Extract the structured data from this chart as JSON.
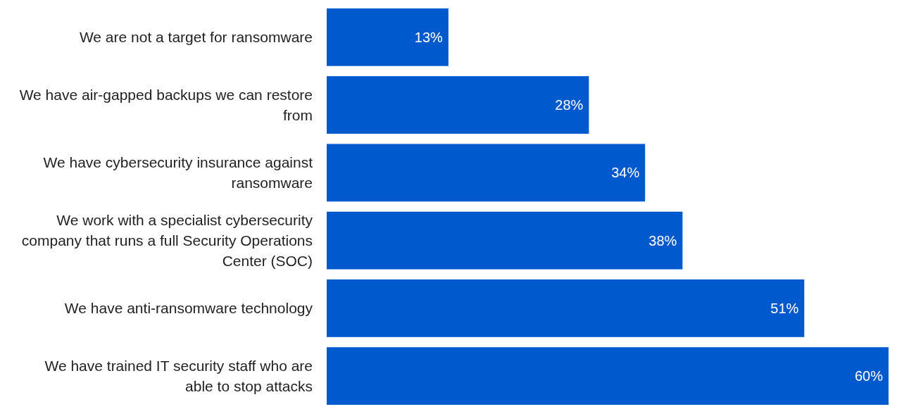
{
  "chart_data": {
    "type": "bar",
    "orientation": "horizontal",
    "categories": [
      "We are not a target for ransomware",
      "We have air-gapped backups we can restore from",
      "We have cybersecurity insurance against ransomware",
      "We work with a specialist cybersecurity company that runs a full Security Operations Center (SOC)",
      "We have anti-ransomware technology",
      "We have trained IT security staff who are able to stop attacks"
    ],
    "values": [
      13,
      28,
      34,
      38,
      51,
      60
    ],
    "value_labels": [
      "13%",
      "28%",
      "34%",
      "38%",
      "51%",
      "60%"
    ],
    "color": "#005acd"
  }
}
